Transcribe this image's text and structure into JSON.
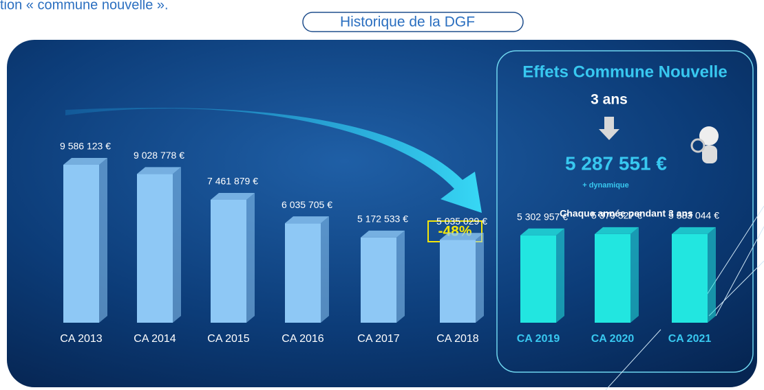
{
  "chart_data": {
    "type": "bar",
    "intro": "tion « commune nouvelle ».",
    "title": "Historique de la DGF",
    "categories": [
      "CA 2013",
      "CA 2014",
      "CA 2015",
      "CA 2016",
      "CA 2017",
      "CA 2018",
      "CA 2019",
      "CA 2020",
      "CA 2021"
    ],
    "values": [
      9586123,
      9028778,
      7461879,
      6035705,
      5172533,
      5035029,
      5302957,
      5379527,
      5383044
    ],
    "value_labels": [
      "9 586 123 €",
      "9 028 778 €",
      "7 461 879 €",
      "6 035 705 €",
      "5 172 533 €",
      "5 035 029 €",
      "5 302 957 €",
      "5 379 527 €",
      "5 383 044 €"
    ],
    "colors": [
      "#8ec8f5",
      "#8ec8f5",
      "#8ec8f5",
      "#8ec8f5",
      "#8ec8f5",
      "#8ec8f5",
      "#22e6e0",
      "#22e6e0",
      "#22e6e0"
    ],
    "change_label": "-48%",
    "panel": {
      "title": "Effets Commune Nouvelle",
      "duration": "3 ans",
      "amount": "5 287 551 €",
      "note": "+ dynamique",
      "caption": "Chaque année pendant 3 ans"
    }
  }
}
